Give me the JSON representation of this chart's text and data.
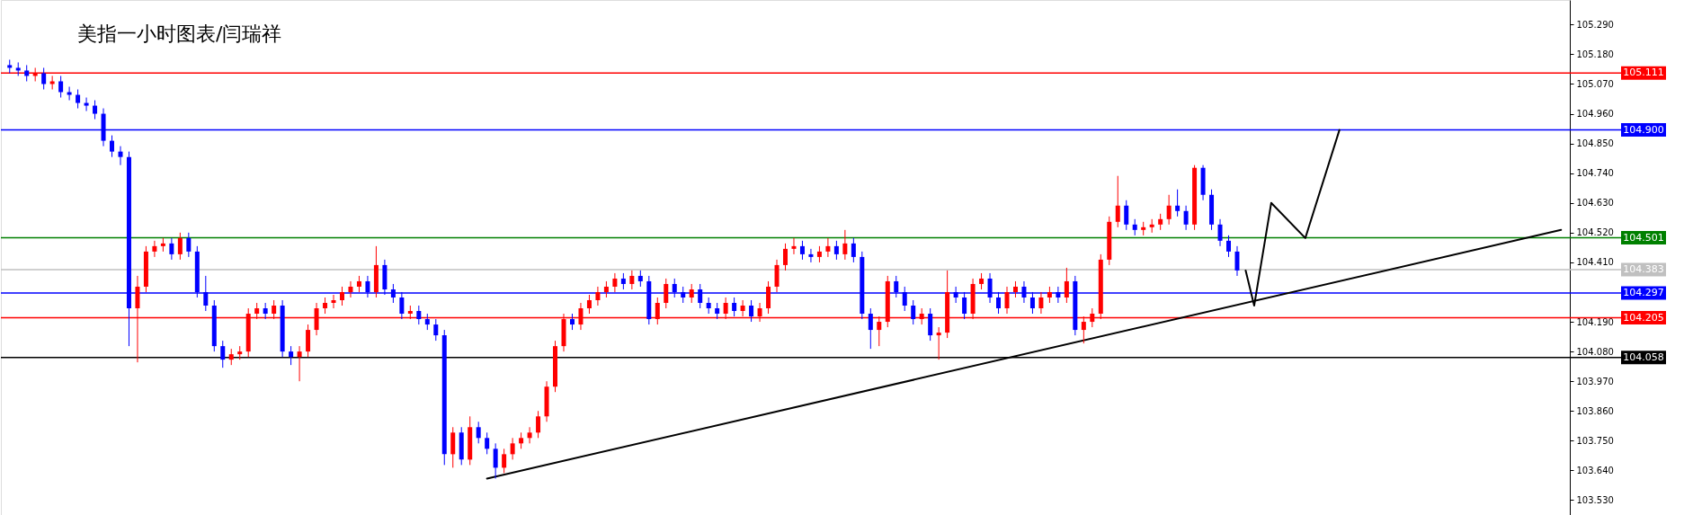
{
  "chart_data": {
    "type": "candlestick",
    "title": "美指一小时图表/闫瑞祥",
    "categories": [
      null,
      null,
      null,
      null,
      null,
      null,
      null,
      null,
      null,
      null,
      null,
      null,
      null,
      null,
      null,
      null,
      null,
      null,
      null,
      null,
      null,
      null,
      null,
      null,
      null,
      null,
      null,
      null,
      null,
      null,
      null,
      null,
      null,
      null,
      null,
      null,
      null,
      null,
      null,
      null,
      null,
      null,
      null,
      null,
      null,
      null,
      null,
      null,
      null,
      null,
      null,
      null,
      null,
      null,
      null,
      null,
      null,
      null,
      null,
      null,
      null,
      null,
      null,
      null,
      null,
      null,
      null,
      null,
      null,
      null,
      null,
      null,
      null,
      null,
      null,
      null,
      null,
      null,
      null,
      null,
      null,
      null,
      null,
      null,
      null,
      null,
      null,
      null,
      null,
      null,
      null,
      null,
      null,
      null,
      null,
      null,
      null,
      null,
      null,
      null,
      null,
      null,
      null,
      null,
      null,
      null,
      null,
      null,
      null,
      null,
      null,
      null,
      null,
      null,
      null,
      null,
      null,
      null,
      null,
      null,
      null,
      null,
      null,
      null,
      null,
      null,
      null,
      null,
      null,
      null,
      null,
      null,
      null,
      null,
      null,
      null,
      null,
      null,
      null,
      null,
      null,
      null,
      null,
      null,
      null,
      null,
      null,
      null,
      null,
      null,
      null,
      null,
      null,
      null,
      null,
      null,
      null,
      null,
      null,
      null,
      null,
      null,
      null,
      null,
      null,
      null,
      null,
      null,
      null,
      null,
      null,
      null,
      null,
      null,
      null,
      null,
      null,
      null,
      null,
      null,
      null,
      null,
      null
    ],
    "ohlc": [
      [
        105.14,
        105.16,
        105.11,
        105.13
      ],
      [
        105.13,
        105.15,
        105.1,
        105.12
      ],
      [
        105.12,
        105.14,
        105.08,
        105.1
      ],
      [
        105.1,
        105.13,
        105.08,
        105.11
      ],
      [
        105.11,
        105.13,
        105.05,
        105.07
      ],
      [
        105.07,
        105.1,
        105.05,
        105.08
      ],
      [
        105.08,
        105.1,
        105.02,
        105.04
      ],
      [
        105.04,
        105.06,
        105.01,
        105.03
      ],
      [
        105.03,
        105.05,
        104.98,
        105.0
      ],
      [
        105.0,
        105.02,
        104.97,
        104.99
      ],
      [
        104.99,
        105.01,
        104.94,
        104.96
      ],
      [
        104.96,
        104.98,
        104.84,
        104.86
      ],
      [
        104.86,
        104.88,
        104.8,
        104.82
      ],
      [
        104.82,
        104.84,
        104.77,
        104.8
      ],
      [
        104.8,
        104.82,
        104.1,
        104.24
      ],
      [
        104.24,
        104.36,
        104.04,
        104.32
      ],
      [
        104.32,
        104.47,
        104.3,
        104.45
      ],
      [
        104.45,
        104.49,
        104.43,
        104.47
      ],
      [
        104.47,
        104.5,
        104.45,
        104.48
      ],
      [
        104.48,
        104.5,
        104.42,
        104.44
      ],
      [
        104.44,
        104.52,
        104.42,
        104.5
      ],
      [
        104.5,
        104.52,
        104.43,
        104.45
      ],
      [
        104.45,
        104.47,
        104.28,
        104.3
      ],
      [
        104.3,
        104.36,
        104.23,
        104.25
      ],
      [
        104.25,
        104.27,
        104.08,
        104.1
      ],
      [
        104.1,
        104.12,
        104.02,
        104.05
      ],
      [
        104.05,
        104.09,
        104.03,
        104.07
      ],
      [
        104.07,
        104.1,
        104.05,
        104.08
      ],
      [
        104.08,
        104.24,
        104.06,
        104.22
      ],
      [
        104.22,
        104.26,
        104.2,
        104.24
      ],
      [
        104.24,
        104.26,
        104.2,
        104.22
      ],
      [
        104.22,
        104.27,
        104.2,
        104.25
      ],
      [
        104.25,
        104.27,
        104.06,
        104.08
      ],
      [
        104.08,
        104.1,
        104.03,
        104.06
      ],
      [
        104.06,
        104.1,
        103.97,
        104.08
      ],
      [
        104.08,
        104.18,
        104.06,
        104.16
      ],
      [
        104.16,
        104.26,
        104.14,
        104.24
      ],
      [
        104.24,
        104.28,
        104.22,
        104.26
      ],
      [
        104.26,
        104.29,
        104.24,
        104.27
      ],
      [
        104.27,
        104.32,
        104.25,
        104.3
      ],
      [
        104.3,
        104.34,
        104.28,
        104.32
      ],
      [
        104.32,
        104.36,
        104.3,
        104.34
      ],
      [
        104.34,
        104.36,
        104.28,
        104.3
      ],
      [
        104.3,
        104.47,
        104.28,
        104.4
      ],
      [
        104.4,
        104.42,
        104.29,
        104.31
      ],
      [
        104.31,
        104.33,
        104.26,
        104.28
      ],
      [
        104.28,
        104.3,
        104.2,
        104.22
      ],
      [
        104.22,
        104.25,
        104.2,
        104.23
      ],
      [
        104.23,
        104.25,
        104.18,
        104.2
      ],
      [
        104.2,
        104.22,
        104.16,
        104.18
      ],
      [
        104.18,
        104.2,
        104.12,
        104.14
      ],
      [
        104.14,
        104.16,
        103.66,
        103.7
      ],
      [
        103.7,
        103.8,
        103.65,
        103.78
      ],
      [
        103.78,
        103.8,
        103.66,
        103.68
      ],
      [
        103.68,
        103.84,
        103.66,
        103.8
      ],
      [
        103.8,
        103.82,
        103.74,
        103.76
      ],
      [
        103.76,
        103.78,
        103.7,
        103.72
      ],
      [
        103.72,
        103.74,
        103.61,
        103.65
      ],
      [
        103.65,
        103.72,
        103.63,
        103.7
      ],
      [
        103.7,
        103.76,
        103.68,
        103.74
      ],
      [
        103.74,
        103.78,
        103.72,
        103.76
      ],
      [
        103.76,
        103.8,
        103.74,
        103.78
      ],
      [
        103.78,
        103.86,
        103.76,
        103.84
      ],
      [
        103.84,
        103.97,
        103.82,
        103.95
      ],
      [
        103.95,
        104.12,
        103.93,
        104.1
      ],
      [
        104.1,
        104.22,
        104.08,
        104.2
      ],
      [
        104.2,
        104.22,
        104.16,
        104.18
      ],
      [
        104.18,
        104.26,
        104.16,
        104.24
      ],
      [
        104.24,
        104.29,
        104.22,
        104.27
      ],
      [
        104.27,
        104.32,
        104.25,
        104.3
      ],
      [
        104.3,
        104.34,
        104.28,
        104.32
      ],
      [
        104.32,
        104.37,
        104.3,
        104.35
      ],
      [
        104.35,
        104.37,
        104.31,
        104.33
      ],
      [
        104.33,
        104.38,
        104.31,
        104.36
      ],
      [
        104.36,
        104.38,
        104.32,
        104.34
      ],
      [
        104.34,
        104.36,
        104.18,
        104.2
      ],
      [
        104.2,
        104.28,
        104.18,
        104.26
      ],
      [
        104.26,
        104.35,
        104.24,
        104.33
      ],
      [
        104.33,
        104.35,
        104.28,
        104.3
      ],
      [
        104.3,
        104.32,
        104.26,
        104.28
      ],
      [
        104.28,
        104.33,
        104.26,
        104.31
      ],
      [
        104.31,
        104.33,
        104.24,
        104.26
      ],
      [
        104.26,
        104.28,
        104.22,
        104.24
      ],
      [
        104.24,
        104.26,
        104.2,
        104.22
      ],
      [
        104.22,
        104.28,
        104.2,
        104.26
      ],
      [
        104.26,
        104.28,
        104.21,
        104.23
      ],
      [
        104.23,
        104.27,
        104.21,
        104.25
      ],
      [
        104.25,
        104.27,
        104.19,
        104.21
      ],
      [
        104.21,
        104.26,
        104.19,
        104.24
      ],
      [
        104.24,
        104.34,
        104.22,
        104.32
      ],
      [
        104.32,
        104.42,
        104.3,
        104.4
      ],
      [
        104.4,
        104.48,
        104.38,
        104.46
      ],
      [
        104.46,
        104.5,
        104.44,
        104.47
      ],
      [
        104.47,
        104.49,
        104.42,
        104.44
      ],
      [
        104.44,
        104.46,
        104.41,
        104.43
      ],
      [
        104.43,
        104.47,
        104.41,
        104.45
      ],
      [
        104.45,
        104.5,
        104.43,
        104.47
      ],
      [
        104.47,
        104.49,
        104.42,
        104.44
      ],
      [
        104.44,
        104.53,
        104.42,
        104.48
      ],
      [
        104.48,
        104.5,
        104.41,
        104.43
      ],
      [
        104.43,
        104.45,
        104.2,
        104.22
      ],
      [
        104.22,
        104.24,
        104.09,
        104.16
      ],
      [
        104.16,
        104.21,
        104.1,
        104.19
      ],
      [
        104.19,
        104.36,
        104.17,
        104.34
      ],
      [
        104.34,
        104.36,
        104.28,
        104.3
      ],
      [
        104.3,
        104.32,
        104.23,
        104.25
      ],
      [
        104.25,
        104.27,
        104.18,
        104.2
      ],
      [
        104.2,
        104.24,
        104.18,
        104.22
      ],
      [
        104.22,
        104.24,
        104.12,
        104.14
      ],
      [
        104.14,
        104.17,
        104.05,
        104.15
      ],
      [
        104.15,
        104.38,
        104.13,
        104.3
      ],
      [
        104.3,
        104.32,
        104.26,
        104.28
      ],
      [
        104.28,
        104.3,
        104.2,
        104.22
      ],
      [
        104.22,
        104.35,
        104.2,
        104.33
      ],
      [
        104.33,
        104.37,
        104.31,
        104.35
      ],
      [
        104.35,
        104.37,
        104.26,
        104.28
      ],
      [
        104.28,
        104.3,
        104.22,
        104.24
      ],
      [
        104.24,
        104.32,
        104.22,
        104.3
      ],
      [
        104.3,
        104.34,
        104.28,
        104.32
      ],
      [
        104.32,
        104.34,
        104.26,
        104.28
      ],
      [
        104.28,
        104.3,
        104.22,
        104.24
      ],
      [
        104.24,
        104.3,
        104.22,
        104.28
      ],
      [
        104.28,
        104.32,
        104.26,
        104.3
      ],
      [
        104.3,
        104.32,
        104.26,
        104.28
      ],
      [
        104.28,
        104.39,
        104.26,
        104.34
      ],
      [
        104.34,
        104.36,
        104.14,
        104.16
      ],
      [
        104.16,
        104.21,
        104.11,
        104.19
      ],
      [
        104.19,
        104.24,
        104.17,
        104.22
      ],
      [
        104.22,
        104.44,
        104.2,
        104.42
      ],
      [
        104.42,
        104.58,
        104.4,
        104.56
      ],
      [
        104.56,
        104.73,
        104.54,
        104.62
      ],
      [
        104.62,
        104.64,
        104.53,
        104.55
      ],
      [
        104.55,
        104.57,
        104.51,
        104.53
      ],
      [
        104.53,
        104.56,
        104.51,
        104.54
      ],
      [
        104.54,
        104.57,
        104.52,
        104.55
      ],
      [
        104.55,
        104.59,
        104.53,
        104.57
      ],
      [
        104.57,
        104.66,
        104.55,
        104.62
      ],
      [
        104.62,
        104.68,
        104.58,
        104.6
      ],
      [
        104.6,
        104.62,
        104.53,
        104.55
      ],
      [
        104.55,
        104.77,
        104.53,
        104.76
      ],
      [
        104.76,
        104.77,
        104.64,
        104.66
      ],
      [
        104.66,
        104.68,
        104.53,
        104.55
      ],
      [
        104.55,
        104.57,
        104.47,
        104.49
      ],
      [
        104.49,
        104.51,
        104.43,
        104.45
      ],
      [
        104.45,
        104.47,
        104.36,
        104.38
      ],
      null,
      null,
      null,
      null,
      null,
      null,
      null,
      null,
      null,
      null,
      null,
      null,
      null,
      null,
      null,
      null,
      null,
      null,
      null,
      null,
      null,
      null,
      null,
      null,
      null,
      null,
      null,
      null,
      null,
      null,
      null,
      null,
      null,
      null,
      null,
      null,
      null,
      null
    ],
    "colors": [
      "#0000ff",
      "#0000ff",
      "#0000ff",
      "#ff0000",
      "#0000ff",
      "#ff0000",
      "#0000ff",
      "#0000ff",
      "#0000ff",
      "#0000ff",
      "#0000ff",
      "#0000ff",
      "#0000ff",
      "#0000ff",
      "#0000ff",
      "#ff0000",
      "#ff0000",
      "#ff0000",
      "#ff0000",
      "#0000ff",
      "#ff0000",
      "#0000ff",
      "#0000ff",
      "#0000ff",
      "#0000ff",
      "#0000ff",
      "#ff0000",
      "#ff0000",
      "#ff0000",
      "#ff0000",
      "#0000ff",
      "#ff0000",
      "#0000ff",
      "#0000ff",
      "#ff0000",
      "#ff0000",
      "#ff0000",
      "#ff0000",
      "#ff0000",
      "#ff0000",
      "#ff0000",
      "#ff0000",
      "#0000ff",
      "#ff0000",
      "#0000ff",
      "#0000ff",
      "#0000ff",
      "#ff0000",
      "#0000ff",
      "#0000ff",
      "#0000ff",
      "#0000ff",
      "#ff0000",
      "#0000ff",
      "#ff0000",
      "#0000ff",
      "#0000ff",
      "#0000ff",
      "#ff0000",
      "#ff0000",
      "#ff0000",
      "#ff0000",
      "#ff0000",
      "#ff0000",
      "#ff0000",
      "#ff0000",
      "#0000ff",
      "#ff0000",
      "#ff0000",
      "#ff0000",
      "#ff0000",
      "#ff0000",
      "#0000ff",
      "#ff0000",
      "#0000ff",
      "#0000ff",
      "#ff0000",
      "#ff0000",
      "#0000ff",
      "#0000ff",
      "#ff0000",
      "#0000ff",
      "#0000ff",
      "#0000ff",
      "#ff0000",
      "#0000ff",
      "#ff0000",
      "#0000ff",
      "#ff0000",
      "#ff0000",
      "#ff0000",
      "#ff0000",
      "#ff0000",
      "#0000ff",
      "#0000ff",
      "#ff0000",
      "#ff0000",
      "#0000ff",
      "#ff0000",
      "#0000ff",
      "#0000ff",
      "#0000ff",
      "#ff0000",
      "#ff0000",
      "#0000ff",
      "#0000ff",
      "#0000ff",
      "#ff0000",
      "#0000ff",
      "#ff0000",
      "#ff0000",
      "#0000ff",
      "#0000ff",
      "#ff0000",
      "#ff0000",
      "#0000ff",
      "#0000ff",
      "#ff0000",
      "#ff0000",
      "#0000ff",
      "#0000ff",
      "#ff0000",
      "#ff0000",
      "#0000ff",
      "#ff0000",
      "#0000ff",
      "#ff0000",
      "#ff0000",
      "#ff0000",
      "#ff0000",
      "#ff0000",
      "#0000ff",
      "#0000ff",
      "#ff0000",
      "#ff0000",
      "#ff0000",
      "#ff0000",
      "#0000ff",
      "#0000ff",
      "#ff0000",
      "#0000ff",
      "#0000ff",
      "#0000ff",
      "#0000ff",
      "#0000ff",
      null,
      null,
      null,
      null,
      null,
      null,
      null,
      null,
      null,
      null,
      null,
      null,
      null,
      null,
      null,
      null,
      null,
      null,
      null,
      null,
      null,
      null,
      null,
      null,
      null,
      null,
      null,
      null,
      null,
      null,
      null,
      null,
      null,
      null,
      null,
      null,
      null,
      null
    ],
    "ylim": [
      103.475,
      105.381
    ],
    "yticks": [
      {
        "value": 105.29,
        "label": "105.290"
      },
      {
        "value": 105.18,
        "label": "105.180"
      },
      {
        "value": 105.07,
        "label": "105.070"
      },
      {
        "value": 104.96,
        "label": "104.960"
      },
      {
        "value": 104.85,
        "label": "104.850"
      },
      {
        "value": 104.74,
        "label": "104.740"
      },
      {
        "value": 104.63,
        "label": "104.630"
      },
      {
        "value": 104.52,
        "label": "104.520"
      },
      {
        "value": 104.41,
        "label": "104.410"
      },
      {
        "value": 104.19,
        "label": "104.190"
      },
      {
        "value": 104.08,
        "label": "104.080"
      },
      {
        "value": 103.97,
        "label": "103.970"
      },
      {
        "value": 103.86,
        "label": "103.860"
      },
      {
        "value": 103.75,
        "label": "103.750"
      },
      {
        "value": 103.64,
        "label": "103.640"
      },
      {
        "value": 103.53,
        "label": "103.530"
      }
    ],
    "tick_labels": "y",
    "series": [
      {
        "type": "line",
        "values": [
          null,
          null,
          null,
          null,
          null,
          null,
          null,
          null,
          null,
          null,
          null,
          null,
          null,
          null,
          null,
          null,
          null,
          null,
          null,
          null,
          null,
          null,
          null,
          null,
          null,
          null,
          null,
          null,
          null,
          null,
          null,
          null,
          null,
          null,
          null,
          null,
          null,
          null,
          null,
          null,
          null,
          null,
          null,
          null,
          null,
          null,
          null,
          null,
          null,
          null,
          null,
          null,
          null,
          null,
          null,
          null,
          103.61,
          null,
          null,
          null,
          null,
          null,
          null,
          null,
          null,
          null,
          null,
          null,
          null,
          null,
          null,
          null,
          null,
          null,
          null,
          null,
          null,
          null,
          null,
          null,
          null,
          null,
          null,
          null,
          null,
          null,
          null,
          null,
          null,
          null,
          null,
          null,
          null,
          null,
          null,
          null,
          null,
          null,
          null,
          null,
          null,
          null,
          null,
          null,
          null,
          null,
          null,
          null,
          null,
          null,
          null,
          null,
          null,
          null,
          null,
          null,
          null,
          null,
          null,
          null,
          null,
          null,
          null,
          null,
          null,
          null,
          null,
          null,
          null,
          null,
          null,
          null,
          null,
          null,
          null,
          null,
          null,
          null,
          null,
          null,
          null,
          null,
          null,
          null,
          null,
          null,
          null,
          null,
          null,
          null,
          null,
          null,
          null,
          null,
          null,
          null,
          null,
          null,
          null,
          null,
          null,
          null,
          null,
          null,
          null,
          null,
          null,
          null,
          null,
          null,
          null,
          null,
          null,
          null,
          null,
          null,
          null,
          null,
          null,
          null,
          null,
          null,
          104.53
        ],
        "color": "#000000"
      },
      {
        "type": "line",
        "values": [
          null,
          null,
          null,
          null,
          null,
          null,
          null,
          null,
          null,
          null,
          null,
          null,
          null,
          null,
          null,
          null,
          null,
          null,
          null,
          null,
          null,
          null,
          null,
          null,
          null,
          null,
          null,
          null,
          null,
          null,
          null,
          null,
          null,
          null,
          null,
          null,
          null,
          null,
          null,
          null,
          null,
          null,
          null,
          null,
          null,
          null,
          null,
          null,
          null,
          null,
          null,
          null,
          null,
          null,
          null,
          null,
          null,
          null,
          null,
          null,
          null,
          null,
          null,
          null,
          null,
          null,
          null,
          null,
          null,
          null,
          null,
          null,
          null,
          null,
          null,
          null,
          null,
          null,
          null,
          null,
          null,
          null,
          null,
          null,
          null,
          null,
          null,
          null,
          null,
          null,
          null,
          null,
          null,
          null,
          null,
          null,
          null,
          null,
          null,
          null,
          null,
          null,
          null,
          null,
          null,
          null,
          null,
          null,
          null,
          null,
          null,
          null,
          null,
          null,
          null,
          null,
          null,
          null,
          null,
          null,
          null,
          null,
          null,
          null,
          null,
          null,
          null,
          null,
          null,
          null,
          null,
          null,
          null,
          null,
          null,
          null,
          null,
          null,
          null,
          null,
          null,
          null,
          null,
          null,
          null,
          104.38,
          104.25,
          null,
          104.63,
          null,
          null,
          null,
          104.5,
          null,
          null,
          null,
          104.9,
          null,
          null,
          null,
          null,
          null,
          null,
          null,
          null,
          null,
          null,
          null,
          null,
          null,
          null,
          null,
          null,
          null,
          null,
          null,
          null,
          null,
          null,
          null,
          null,
          null,
          null
        ],
        "color": "#000000"
      }
    ],
    "ref_lines": [
      {
        "axis": "y",
        "value": 105.111,
        "label": "105.111",
        "color": "#ff0000"
      },
      {
        "axis": "y",
        "value": 104.9,
        "label": "104.900",
        "color": "#0000ff"
      },
      {
        "axis": "y",
        "value": 104.501,
        "label": "104.501",
        "color": "#008000"
      },
      {
        "axis": "y",
        "value": 104.383,
        "label": "104.383",
        "color": "#c0c0c0"
      },
      {
        "axis": "y",
        "value": 104.297,
        "label": "104.297",
        "color": "#0000ff"
      },
      {
        "axis": "y",
        "value": 104.205,
        "label": "104.205",
        "color": "#ff0000"
      },
      {
        "axis": "y",
        "value": 104.058,
        "label": "104.058",
        "color": "#000000"
      }
    ]
  }
}
